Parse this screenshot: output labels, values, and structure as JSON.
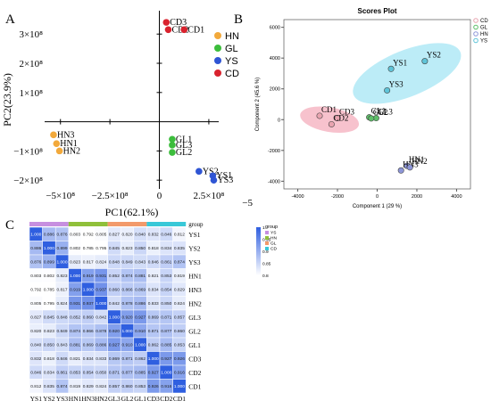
{
  "panels": {
    "A": {
      "letter": "A"
    },
    "B": {
      "letter": "B"
    },
    "C": {
      "letter": "C"
    }
  },
  "colors": {
    "HN": "#f2a93b",
    "GL": "#3cbd3c",
    "YS": "#2f55d4",
    "CD": "#d9232e",
    "heat_low": "#ffffff",
    "heat_high": "#2f5fe0"
  },
  "chart_data": [
    {
      "id": "panel-a",
      "type": "scatter",
      "title": "",
      "xlabel": "PC1(62.1%)",
      "ylabel": "PC2(23.9%)",
      "xlim": [
        -580000000.0,
        300000000.0
      ],
      "ylim": [
        -230000000.0,
        380000000.0
      ],
      "x_ticks": [
        {
          "value": -500000000.0,
          "label": "−5×10⁸"
        },
        {
          "value": -250000000.0,
          "label": "−2.5×10⁸"
        },
        {
          "value": 0,
          "label": "0"
        },
        {
          "value": 250000000.0,
          "label": "2.5×10⁸"
        }
      ],
      "y_ticks": [
        {
          "value": 300000000.0,
          "label": "3×10⁸"
        },
        {
          "value": 200000000.0,
          "label": "2×10⁸"
        },
        {
          "value": 100000000.0,
          "label": "1×10⁸"
        },
        {
          "value": -100000000.0,
          "label": "−1×10⁸"
        },
        {
          "value": -200000000.0,
          "label": "−2×10⁸"
        }
      ],
      "extra_label": "−5",
      "legend": {
        "placement": "top-right",
        "entries": [
          "HN",
          "GL",
          "YS",
          "CD"
        ]
      },
      "series": [
        {
          "name": "HN",
          "points": [
            {
              "label": "HN3",
              "x": -535000000.0,
              "y": -45000000.0
            },
            {
              "label": "HN1",
              "x": -520000000.0,
              "y": -75000000.0
            },
            {
              "label": "HN2",
              "x": -505000000.0,
              "y": -100000000.0
            }
          ]
        },
        {
          "name": "GL",
          "points": [
            {
              "label": "GL1",
              "x": 65000000.0,
              "y": -60000000.0
            },
            {
              "label": "GL3",
              "x": 65000000.0,
              "y": -80000000.0
            },
            {
              "label": "GL2",
              "x": 65000000.0,
              "y": -105000000.0
            }
          ]
        },
        {
          "name": "YS",
          "points": [
            {
              "label": "YS2",
              "x": 200000000.0,
              "y": -170000000.0
            },
            {
              "label": "YS1",
              "x": 270000000.0,
              "y": -185000000.0
            },
            {
              "label": "YS3",
              "x": 275000000.0,
              "y": -200000000.0
            }
          ]
        },
        {
          "name": "CD",
          "points": [
            {
              "label": "CD3",
              "x": 35000000.0,
              "y": 340000000.0
            },
            {
              "label": "CD2",
              "x": 45000000.0,
              "y": 315000000.0
            },
            {
              "label": "CD1",
              "x": 125000000.0,
              "y": 315000000.0
            }
          ]
        }
      ]
    },
    {
      "id": "panel-b",
      "type": "scatter",
      "title": "Scores Plot",
      "xlabel": "Component 1 (29 %)",
      "ylabel": "Component 2 (45.6 %)",
      "xlim": [
        -4700,
        4700
      ],
      "ylim": [
        -4500,
        6500
      ],
      "x_ticks": [
        -4000,
        -2000,
        0,
        2000,
        4000
      ],
      "y_ticks": [
        -4000,
        -2000,
        0,
        2000,
        4000,
        6000
      ],
      "legend": {
        "placement": "top-right",
        "entries": [
          "CD",
          "GL",
          "HN",
          "YS"
        ]
      },
      "series": [
        {
          "name": "CD",
          "points": [
            {
              "label": "CD1",
              "x": -2900,
              "y": 250
            },
            {
              "label": "CD3",
              "x": -2000,
              "y": 100
            },
            {
              "label": "CD2",
              "x": -2300,
              "y": -300
            }
          ]
        },
        {
          "name": "GL",
          "points": [
            {
              "label": "GL1",
              "x": -400,
              "y": 150
            },
            {
              "label": "GL3",
              "x": -50,
              "y": 100
            },
            {
              "label": "GL2",
              "x": -300,
              "y": 80
            }
          ]
        },
        {
          "name": "HN",
          "points": [
            {
              "label": "HN1",
              "x": 1500,
              "y": -3000
            },
            {
              "label": "HN3",
              "x": 1200,
              "y": -3300
            },
            {
              "label": "HN2",
              "x": 1650,
              "y": -3100
            }
          ]
        },
        {
          "name": "YS",
          "points": [
            {
              "label": "YS1",
              "x": 700,
              "y": 3300
            },
            {
              "label": "YS2",
              "x": 2400,
              "y": 3800
            },
            {
              "label": "YS3",
              "x": 500,
              "y": 1900
            }
          ]
        }
      ],
      "ellipses": [
        {
          "group": "CD",
          "cx": -2400,
          "cy": 0,
          "rx": 1500,
          "ry": 800,
          "angle_deg": -10
        },
        {
          "group": "YS",
          "cx": 1500,
          "cy": 3000,
          "rx": 2900,
          "ry": 1500,
          "angle_deg": 22
        }
      ]
    },
    {
      "id": "panel-c",
      "type": "heatmap",
      "rows": [
        "YS1",
        "YS2",
        "YS3",
        "HN1",
        "HN3",
        "HN2",
        "GL3",
        "GL2",
        "GL1",
        "CD3",
        "CD2",
        "CD1"
      ],
      "columns": [
        "YS1",
        "YS2",
        "YS3",
        "HN1",
        "HN3",
        "HN2",
        "GL3",
        "GL2",
        "GL1",
        "CD3",
        "CD2",
        "CD1"
      ],
      "column_groups": [
        {
          "name": "YS",
          "span": 3,
          "color": "#c78fe0"
        },
        {
          "name": "HN",
          "span": 3,
          "color": "#8fc03a"
        },
        {
          "name": "GL",
          "span": 3,
          "color": "#f29a6b"
        },
        {
          "name": "CD",
          "span": 3,
          "color": "#38c8d8"
        }
      ],
      "group_label": "group",
      "values": [
        [
          1.0,
          0.886,
          0.876,
          0.803,
          0.792,
          0.805,
          0.827,
          0.82,
          0.84,
          0.832,
          0.846,
          0.812
        ],
        [
          0.886,
          1.0,
          0.899,
          0.802,
          0.785,
          0.795,
          0.845,
          0.823,
          0.85,
          0.818,
          0.834,
          0.835
        ],
        [
          0.876,
          0.899,
          1.0,
          0.823,
          0.817,
          0.824,
          0.848,
          0.849,
          0.843,
          0.846,
          0.861,
          0.874
        ],
        [
          0.803,
          0.802,
          0.823,
          1.0,
          0.919,
          0.931,
          0.852,
          0.874,
          0.881,
          0.821,
          0.853,
          0.819
        ],
        [
          0.792,
          0.785,
          0.817,
          0.919,
          1.0,
          0.937,
          0.86,
          0.866,
          0.869,
          0.834,
          0.854,
          0.829
        ],
        [
          0.805,
          0.795,
          0.824,
          0.931,
          0.937,
          1.0,
          0.842,
          0.878,
          0.886,
          0.833,
          0.85,
          0.824
        ],
        [
          0.827,
          0.845,
          0.848,
          0.852,
          0.86,
          0.842,
          1.0,
          0.92,
          0.927,
          0.869,
          0.871,
          0.857
        ],
        [
          0.82,
          0.823,
          0.849,
          0.874,
          0.866,
          0.878,
          0.92,
          1.0,
          0.91,
          0.871,
          0.877,
          0.86
        ],
        [
          0.84,
          0.85,
          0.843,
          0.881,
          0.869,
          0.886,
          0.927,
          0.91,
          1.0,
          0.862,
          0.885,
          0.853
        ],
        [
          0.832,
          0.818,
          0.846,
          0.821,
          0.834,
          0.833,
          0.869,
          0.871,
          0.862,
          1.0,
          0.927,
          0.926
        ],
        [
          0.846,
          0.834,
          0.861,
          0.853,
          0.854,
          0.85,
          0.871,
          0.877,
          0.885,
          0.927,
          1.0,
          0.916
        ],
        [
          0.812,
          0.835,
          0.874,
          0.819,
          0.829,
          0.824,
          0.857,
          0.86,
          0.853,
          0.926,
          0.916,
          1.0
        ]
      ],
      "colorbar": {
        "min": 0.8,
        "max": 1.0,
        "ticks": [
          "1",
          "0.95",
          "0.9",
          "0.85",
          "0.8"
        ]
      },
      "legend": {
        "title": "group",
        "entries": [
          "YS",
          "HN",
          "GL",
          "CD"
        ]
      }
    }
  ]
}
